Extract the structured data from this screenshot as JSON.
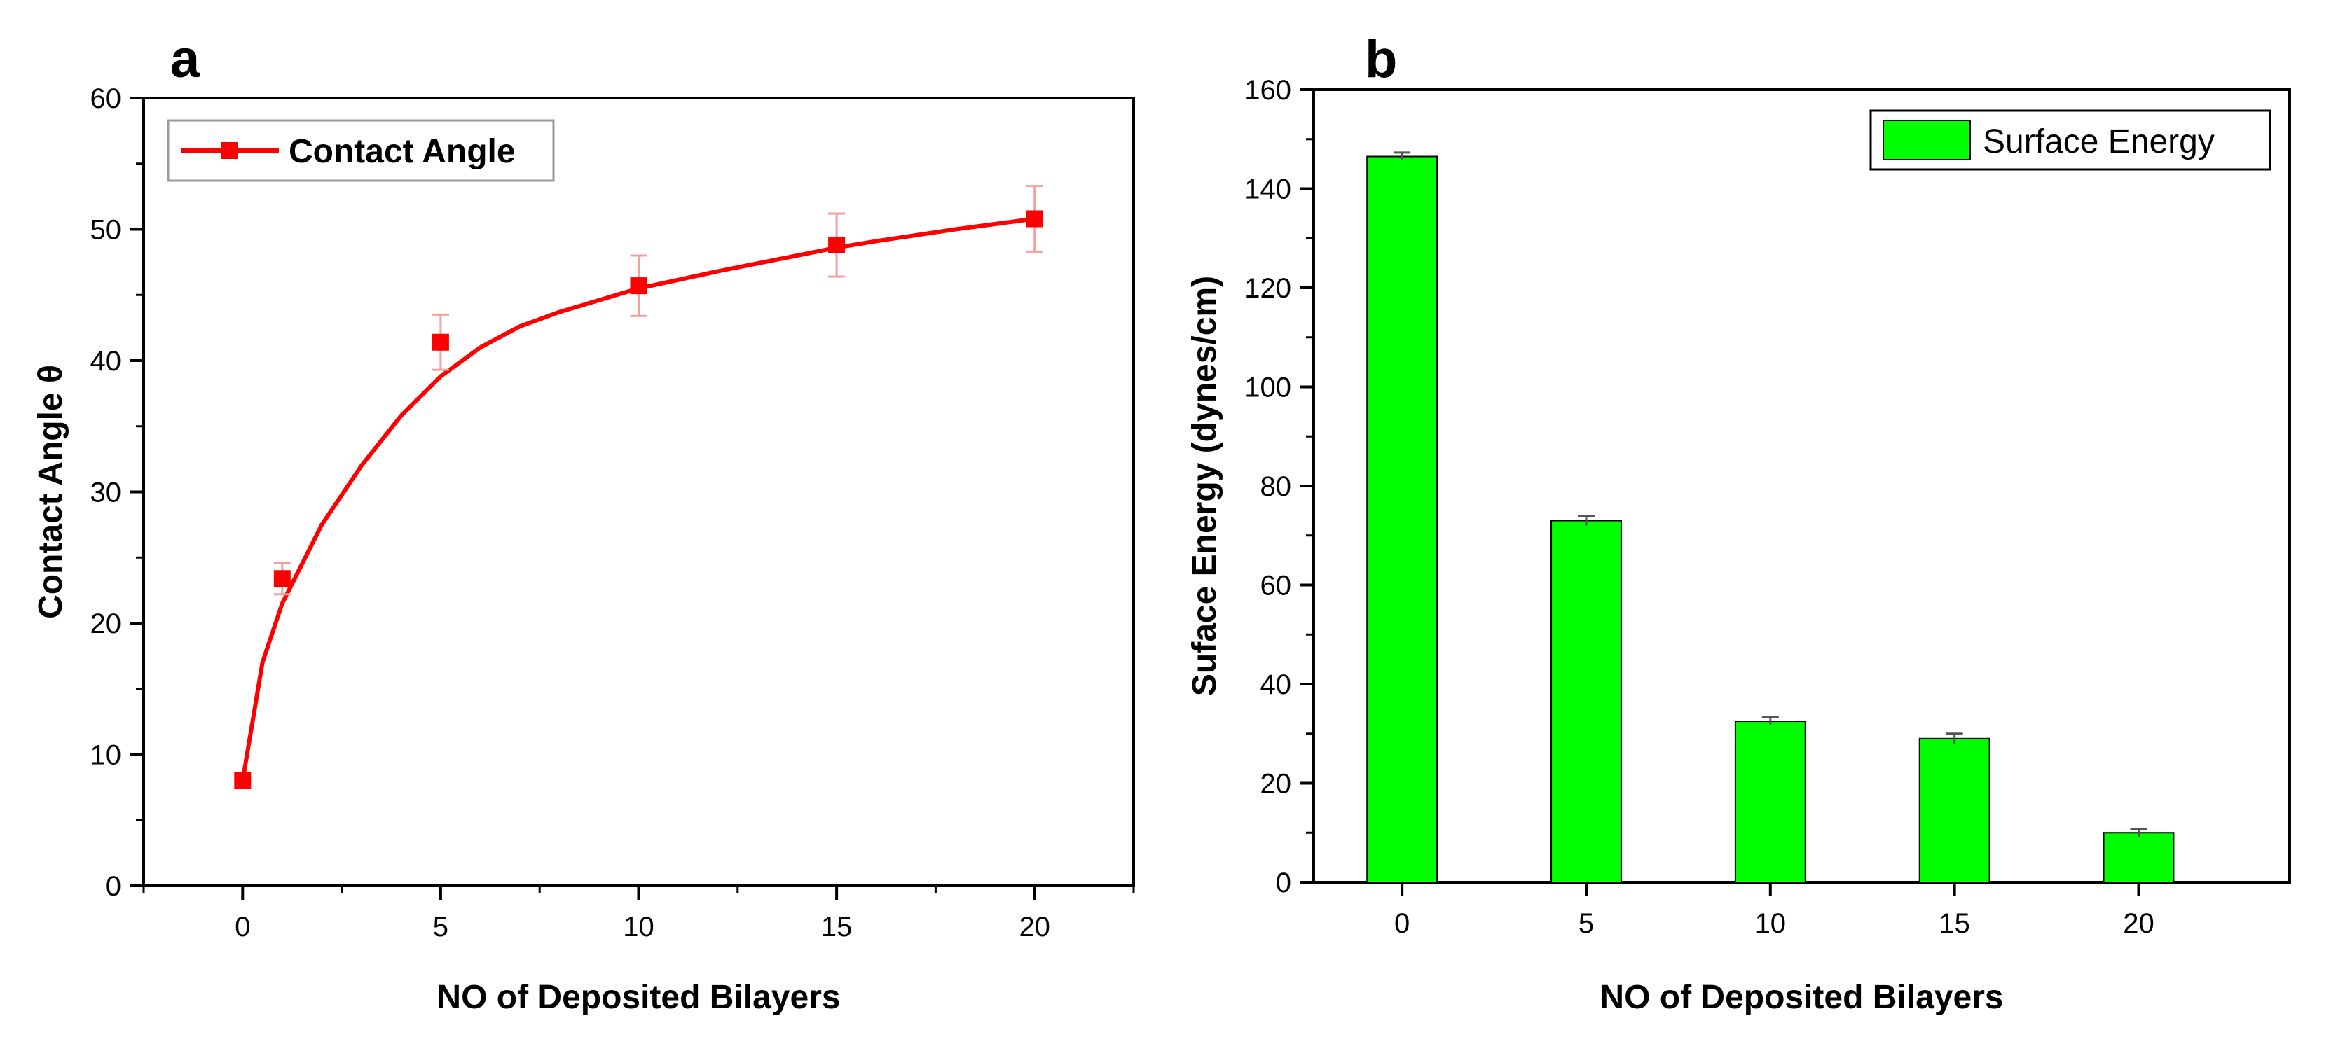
{
  "colors": {
    "line": "#ff0000",
    "marker": "#ff0000",
    "error_bar_a": "#f4a0a0",
    "bar_fill": "#00ff00",
    "bar_edge": "#000000",
    "error_bar_b": "#555555"
  },
  "chart_data": [
    {
      "panel": "a",
      "type": "scatter",
      "title": "",
      "xlabel": "NO of Deposited Bilayers",
      "ylabel": "Contact Angle θ",
      "xlim": [
        -2.5,
        22.5
      ],
      "ylim": [
        0,
        60
      ],
      "xticks": [
        0,
        5,
        10,
        15,
        20
      ],
      "yticks": [
        0,
        10,
        20,
        30,
        40,
        50,
        60
      ],
      "series": [
        {
          "name": "Contact Angle",
          "x": [
            0,
            1,
            5,
            10,
            15,
            20
          ],
          "y": [
            8.0,
            23.4,
            41.4,
            45.7,
            48.8,
            50.8
          ],
          "error": [
            0,
            1.2,
            2.1,
            2.3,
            2.4,
            2.5
          ],
          "fit_curve": {
            "x": [
              0,
              0.5,
              1,
              2,
              3,
              4,
              5,
              6,
              7,
              8,
              9,
              10,
              12,
              14,
              15,
              16,
              18,
              20
            ],
            "y": [
              8.0,
              17.0,
              21.5,
              27.5,
              32.0,
              35.8,
              38.8,
              41.0,
              42.6,
              43.7,
              44.6,
              45.5,
              46.8,
              48.0,
              48.6,
              49.1,
              50.0,
              50.8
            ]
          }
        }
      ],
      "legend": {
        "label": "Contact Angle",
        "position": "top-left"
      }
    },
    {
      "panel": "b",
      "type": "bar",
      "title": "",
      "xlabel": "NO of Deposited Bilayers",
      "ylabel": "Suface Energy (dynes/cm)",
      "categories": [
        "0",
        "5",
        "10",
        "15",
        "20"
      ],
      "values": [
        146.5,
        73.0,
        32.5,
        29.0,
        10.0
      ],
      "error": [
        0.8,
        1.0,
        0.8,
        1.0,
        0.8
      ],
      "ylim": [
        0,
        160
      ],
      "yticks": [
        0,
        20,
        40,
        60,
        80,
        100,
        120,
        140,
        160
      ],
      "legend": {
        "label": "Surface Energy",
        "position": "top-right"
      }
    }
  ]
}
